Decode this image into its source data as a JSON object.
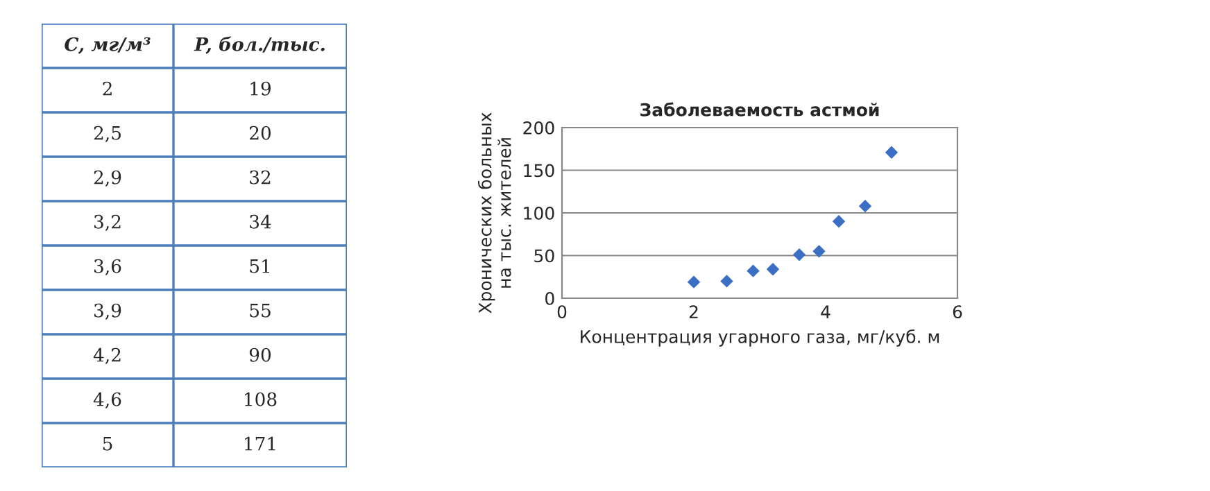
{
  "chart_data": [
    {
      "type": "other",
      "annotations": [
        "C, мг/м³",
        "P, бол./тыс.",
        "2",
        "19",
        "2,5",
        "20",
        "2,9",
        "32",
        "3,2",
        "34",
        "3,6",
        "51",
        "3,9",
        "55",
        "4,2",
        "90",
        "4,6",
        "108",
        "5",
        "171"
      ]
    },
    {
      "type": "scatter",
      "title": "Заболеваемость астмой",
      "xlabel": "Концентрация угарного газа, мг/куб. м",
      "ylabel": "Хронических больных\nна тыс. жителей",
      "x": [
        2,
        2.5,
        2.9,
        3.2,
        3.6,
        3.9,
        4.2,
        4.6,
        5
      ],
      "series": [
        {
          "color": "#3a6fc4",
          "values": [
            19,
            20,
            32,
            34,
            51,
            55,
            90,
            108,
            171
          ]
        }
      ],
      "marker": "diamond",
      "xlim": [
        0,
        6
      ],
      "xticks": [
        0,
        2,
        4,
        6
      ],
      "ylim": [
        0,
        200
      ],
      "yticks": [
        0,
        50,
        100,
        150,
        200
      ],
      "grid": "y"
    }
  ]
}
